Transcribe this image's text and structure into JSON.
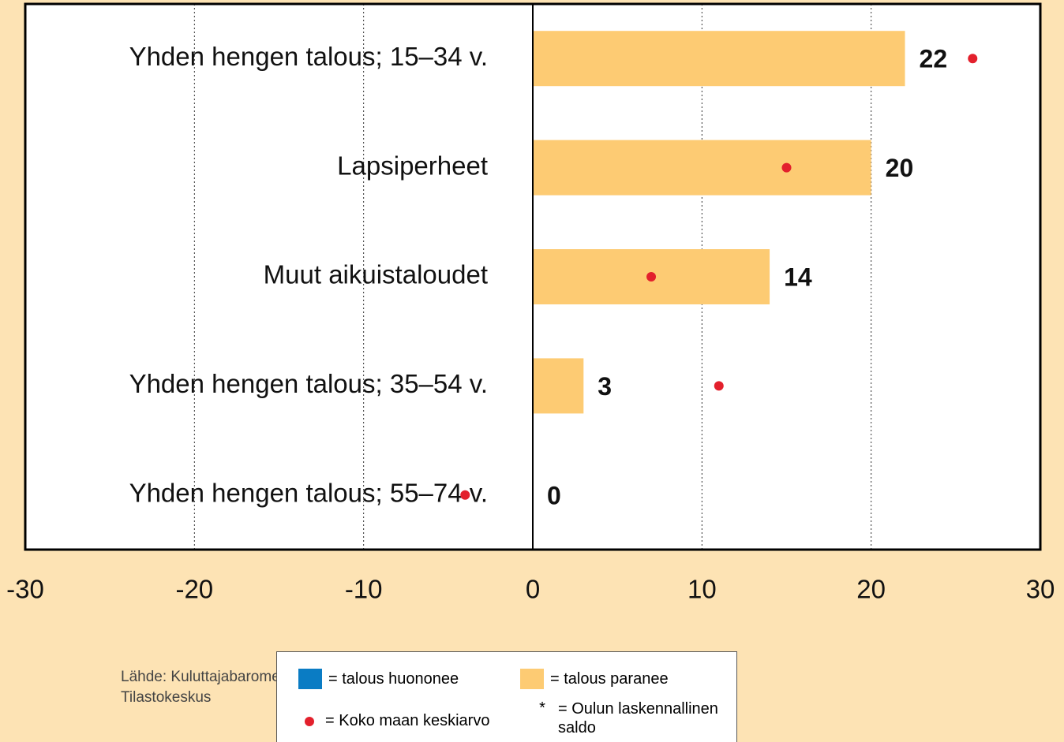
{
  "chart_data": {
    "type": "bar",
    "orientation": "horizontal",
    "categories": [
      "Yhden hengen talous; 15–34 v.",
      "Lapsiperheet",
      "Muut aikuistaloudet",
      "Yhden hengen talous; 35–54 v.",
      "Yhden hengen talous; 55–74 v."
    ],
    "series": [
      {
        "name": "= talous huononee",
        "color": "#0a7cc4",
        "values": [
          null,
          null,
          null,
          null,
          null
        ]
      },
      {
        "name": "= talous paranee",
        "color": "#fdcb73",
        "values": [
          22,
          20,
          14,
          3,
          0
        ]
      },
      {
        "name": "= Koko maan keskiarvo",
        "color": "#e3202c",
        "type": "dot",
        "values": [
          26,
          15,
          7,
          11,
          -4
        ]
      }
    ],
    "legend_note": {
      "symbol": "*",
      "label": "= Oulun laskennallinen saldo"
    },
    "xlim": [
      -30,
      30
    ],
    "xticks": [
      -30,
      -20,
      -10,
      0,
      10,
      20,
      30
    ],
    "grid": true,
    "source": [
      "Lähde: Kuluttajabarometri.",
      "Tilastokeskus"
    ]
  }
}
